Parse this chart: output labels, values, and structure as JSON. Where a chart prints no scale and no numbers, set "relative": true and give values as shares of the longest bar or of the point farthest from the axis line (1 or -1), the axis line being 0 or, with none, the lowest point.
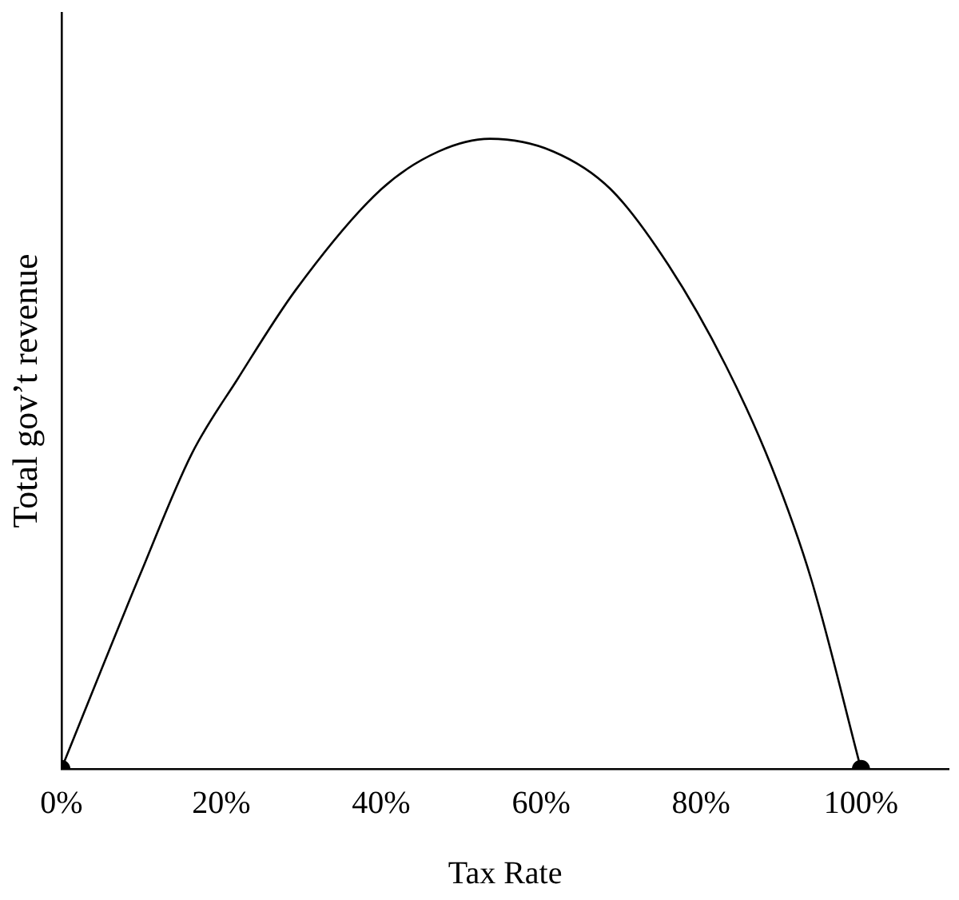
{
  "chart_data": {
    "type": "line",
    "xlabel": "Tax Rate",
    "ylabel": "Total gov’t revenue",
    "relative": true,
    "xlim": [
      0,
      111
    ],
    "xticks": [
      {
        "value": 0,
        "label": "0%"
      },
      {
        "value": 20,
        "label": "20%"
      },
      {
        "value": 40,
        "label": "40%"
      },
      {
        "value": 60,
        "label": "60%"
      },
      {
        "value": 80,
        "label": "80%"
      },
      {
        "value": 100,
        "label": "100%"
      }
    ],
    "tick_labels": "x",
    "grid": false,
    "legend": false,
    "series": [
      {
        "color": "#000000",
        "marker": "none",
        "x": [
          0,
          9.9,
          16.3,
          22.1,
          29.3,
          40,
          47.2,
          53.6,
          61.5,
          68.7,
          75.9,
          83.1,
          88.8,
          93.8,
          100
        ],
        "values": [
          0,
          0.31,
          0.5,
          0.62,
          0.76,
          0.92,
          0.98,
          1,
          0.98,
          0.92,
          0.8,
          0.64,
          0.48,
          0.3,
          0
        ]
      },
      {
        "type": "scatter",
        "color": "#000000",
        "marker": "circle",
        "x": [
          0,
          100
        ],
        "values": [
          0,
          0
        ]
      }
    ]
  }
}
